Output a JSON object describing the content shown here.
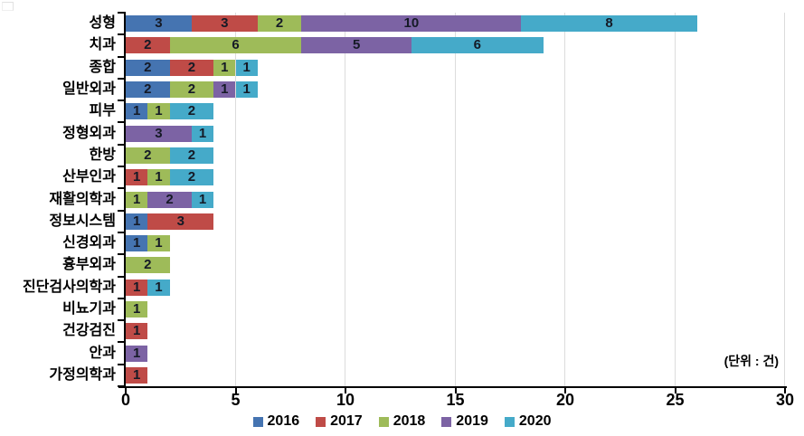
{
  "chart_data": {
    "type": "bar",
    "orientation": "horizontal",
    "stacked": true,
    "title": "",
    "unit_note": "(단위 : 건)",
    "categories": [
      "성형",
      "치과",
      "종합",
      "일반외과",
      "피부",
      "정형외과",
      "한방",
      "산부인과",
      "재활의학과",
      "정보시스템",
      "신경외과",
      "흉부외과",
      "진단검사의학과",
      "비뇨기과",
      "건강검진",
      "안과",
      "가정의학과"
    ],
    "series": [
      {
        "name": "2016",
        "color": "#4574B1",
        "values": [
          3,
          0,
          2,
          2,
          1,
          0,
          0,
          0,
          0,
          1,
          1,
          0,
          0,
          0,
          0,
          0,
          0
        ]
      },
      {
        "name": "2017",
        "color": "#BF4B47",
        "values": [
          3,
          2,
          2,
          0,
          0,
          0,
          0,
          1,
          0,
          3,
          0,
          0,
          1,
          0,
          1,
          0,
          1
        ]
      },
      {
        "name": "2018",
        "color": "#9EBB59",
        "values": [
          2,
          6,
          1,
          2,
          1,
          0,
          2,
          1,
          1,
          0,
          1,
          2,
          0,
          1,
          0,
          0,
          0
        ]
      },
      {
        "name": "2019",
        "color": "#7C63A4",
        "values": [
          10,
          5,
          0,
          1,
          0,
          3,
          0,
          0,
          2,
          0,
          0,
          0,
          0,
          0,
          0,
          1,
          0
        ]
      },
      {
        "name": "2020",
        "color": "#45AAC9",
        "values": [
          8,
          6,
          1,
          1,
          2,
          1,
          2,
          2,
          1,
          0,
          0,
          0,
          1,
          0,
          0,
          0,
          0
        ]
      }
    ],
    "totals": [
      26,
      19,
      6,
      6,
      4,
      4,
      4,
      4,
      4,
      4,
      2,
      2,
      2,
      1,
      1,
      1,
      1
    ],
    "xlabel": "",
    "ylabel": "",
    "xlim": [
      0,
      30
    ],
    "x_ticks": [
      0,
      5,
      10,
      15,
      20,
      25,
      30
    ],
    "grid": true,
    "gridline_color": "#dcdcdc",
    "axis_color": "#000000",
    "value_label_color": "#151a26",
    "legend_position": "bottom",
    "legend": [
      "2016",
      "2017",
      "2018",
      "2019",
      "2020"
    ]
  }
}
